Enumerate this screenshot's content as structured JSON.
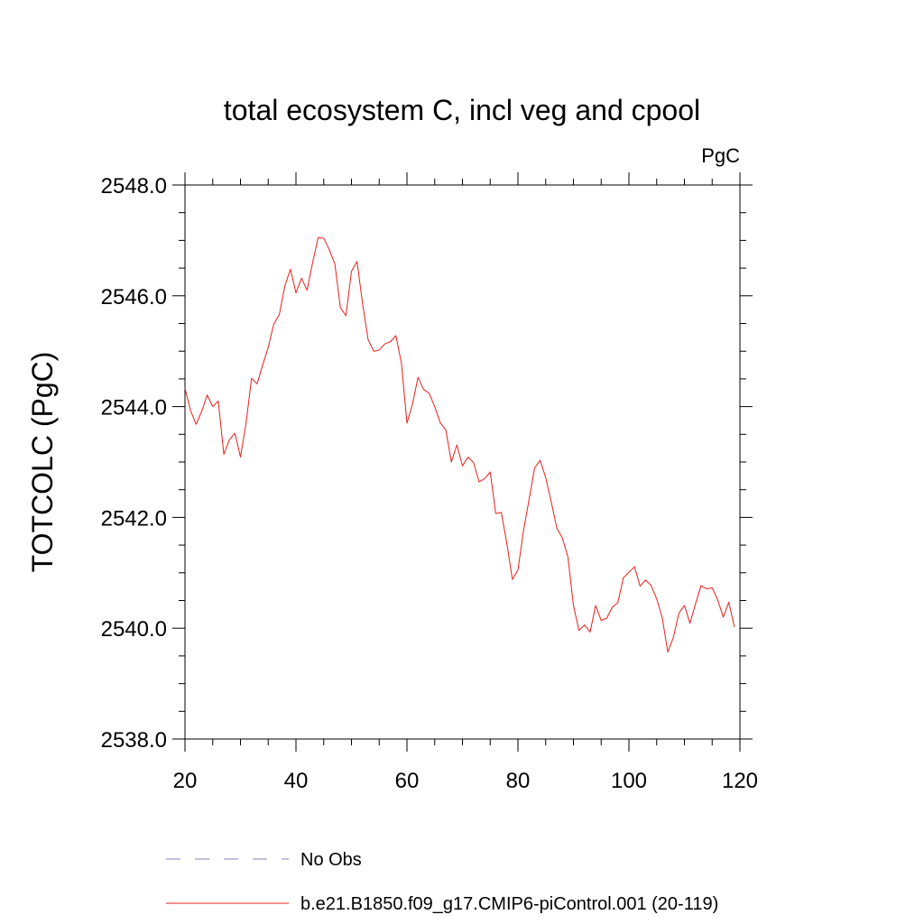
{
  "chart_data": {
    "type": "line",
    "title": "total ecosystem C, incl veg and cpool",
    "units_label": "PgC",
    "ylabel": "TOTCOLC  (PgC)",
    "xlabel": "",
    "xlim": [
      20,
      120
    ],
    "ylim": [
      2538,
      2548
    ],
    "x_ticks": [
      20,
      40,
      60,
      80,
      100,
      120
    ],
    "x_tick_labels": [
      "20",
      "40",
      "60",
      "80",
      "100",
      "120"
    ],
    "y_ticks": [
      2538,
      2540,
      2542,
      2544,
      2546,
      2548
    ],
    "y_tick_labels": [
      "2538.0",
      "2540.0",
      "2542.0",
      "2544.0",
      "2546.0",
      "2548.0"
    ],
    "grid": false,
    "legend_position": "bottom",
    "series": [
      {
        "name": "No Obs",
        "color": "#8080c0",
        "dash": true,
        "x": [],
        "values": []
      },
      {
        "name": "b.e21.B1850.f09_g17.CMIP6-piControl.001 (20-119)",
        "color": "#e8201c",
        "dash": false,
        "x": [
          20,
          21,
          22,
          23,
          24,
          25,
          26,
          27,
          28,
          29,
          30,
          31,
          32,
          33,
          34,
          35,
          36,
          37,
          38,
          39,
          40,
          41,
          42,
          43,
          44,
          45,
          46,
          47,
          48,
          49,
          50,
          51,
          52,
          53,
          54,
          55,
          56,
          57,
          58,
          59,
          60,
          61,
          62,
          63,
          64,
          65,
          66,
          67,
          68,
          69,
          70,
          71,
          72,
          73,
          74,
          75,
          76,
          77,
          78,
          79,
          80,
          81,
          82,
          83,
          84,
          85,
          86,
          87,
          88,
          89,
          90,
          91,
          92,
          93,
          94,
          95,
          96,
          97,
          98,
          99,
          100,
          101,
          102,
          103,
          104,
          105,
          106,
          107,
          108,
          109,
          110,
          111,
          112,
          113,
          114,
          115,
          116,
          117,
          118,
          119
        ],
        "values": [
          2544.33,
          2543.93,
          2543.68,
          2543.91,
          2544.21,
          2544.0,
          2544.1,
          2543.14,
          2543.4,
          2543.52,
          2543.09,
          2543.7,
          2544.51,
          2544.41,
          2544.75,
          2545.07,
          2545.49,
          2545.66,
          2546.18,
          2546.48,
          2546.05,
          2546.32,
          2546.1,
          2546.6,
          2547.05,
          2547.04,
          2546.83,
          2546.58,
          2545.79,
          2545.64,
          2546.44,
          2546.62,
          2545.86,
          2545.21,
          2545.0,
          2545.02,
          2545.13,
          2545.17,
          2545.28,
          2544.79,
          2543.7,
          2544.05,
          2544.53,
          2544.31,
          2544.24,
          2544.0,
          2543.71,
          2543.58,
          2543.0,
          2543.31,
          2542.93,
          2543.09,
          2542.99,
          2542.64,
          2542.7,
          2542.82,
          2542.07,
          2542.09,
          2541.53,
          2540.88,
          2541.05,
          2541.76,
          2542.32,
          2542.89,
          2543.03,
          2542.72,
          2542.28,
          2541.81,
          2541.63,
          2541.29,
          2540.41,
          2539.96,
          2540.06,
          2539.93,
          2540.41,
          2540.14,
          2540.18,
          2540.38,
          2540.46,
          2540.91,
          2541.01,
          2541.11,
          2540.76,
          2540.87,
          2540.77,
          2540.53,
          2540.19,
          2539.57,
          2539.83,
          2540.27,
          2540.41,
          2540.09,
          2540.44,
          2540.77,
          2540.71,
          2540.73,
          2540.51,
          2540.2,
          2540.47,
          2540.02
        ]
      }
    ]
  }
}
